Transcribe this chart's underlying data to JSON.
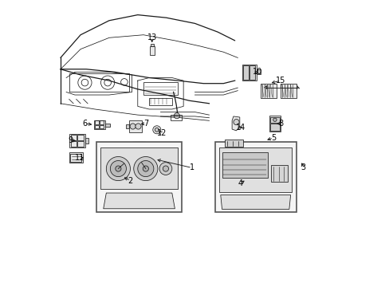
{
  "bg": "#ffffff",
  "lc": "#1a1a1a",
  "fig_w": 4.89,
  "fig_h": 3.6,
  "dpi": 100,
  "labels_arrows": [
    [
      1,
      0.49,
      0.415,
      0.36,
      0.445
    ],
    [
      2,
      0.275,
      0.37,
      0.245,
      0.385
    ],
    [
      3,
      0.88,
      0.415,
      0.87,
      0.44
    ],
    [
      4,
      0.66,
      0.36,
      0.68,
      0.375
    ],
    [
      5,
      0.775,
      0.52,
      0.745,
      0.51
    ],
    [
      6,
      0.115,
      0.57,
      0.148,
      0.565
    ],
    [
      7,
      0.33,
      0.57,
      0.302,
      0.567
    ],
    [
      8,
      0.8,
      0.57,
      0.778,
      0.568
    ],
    [
      9,
      0.065,
      0.51,
      0.092,
      0.51
    ],
    [
      10,
      0.72,
      0.75,
      0.7,
      0.748
    ],
    [
      11,
      0.098,
      0.45,
      0.12,
      0.45
    ],
    [
      12,
      0.385,
      0.535,
      0.367,
      0.548
    ],
    [
      13,
      0.35,
      0.87,
      0.35,
      0.845
    ],
    [
      14,
      0.66,
      0.555,
      0.65,
      0.568
    ],
    [
      15,
      0.8,
      0.72,
      0.76,
      0.71
    ]
  ]
}
